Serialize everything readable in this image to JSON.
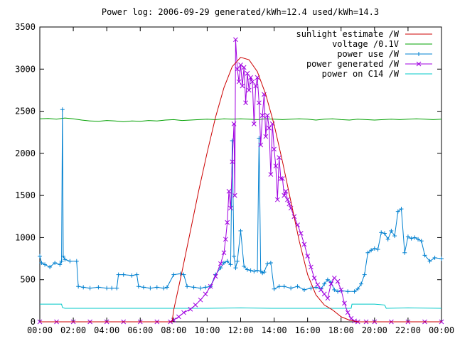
{
  "chart_data": {
    "type": "line",
    "title": "Power log: 2006-09-29 generated/kWh=12.4 used/kWh=14.3",
    "xlabel": "",
    "ylabel": "",
    "x_unit": "hour of day",
    "xlim": [
      0,
      24
    ],
    "ylim": [
      0,
      3500
    ],
    "grid": false,
    "legend_position": "top-right",
    "x_ticks": [
      {
        "value": 0,
        "label": "00:00"
      },
      {
        "value": 2,
        "label": "02:00"
      },
      {
        "value": 4,
        "label": "04:00"
      },
      {
        "value": 6,
        "label": "06:00"
      },
      {
        "value": 8,
        "label": "08:00"
      },
      {
        "value": 10,
        "label": "10:00"
      },
      {
        "value": 12,
        "label": "12:00"
      },
      {
        "value": 14,
        "label": "14:00"
      },
      {
        "value": 16,
        "label": "16:00"
      },
      {
        "value": 18,
        "label": "18:00"
      },
      {
        "value": 20,
        "label": "20:00"
      },
      {
        "value": 22,
        "label": "22:00"
      },
      {
        "value": 24,
        "label": "00:00"
      }
    ],
    "y_ticks": [
      {
        "value": 0,
        "label": "0"
      },
      {
        "value": 500,
        "label": "500"
      },
      {
        "value": 1000,
        "label": "1000"
      },
      {
        "value": 1500,
        "label": "1500"
      },
      {
        "value": 2000,
        "label": "2000"
      },
      {
        "value": 2500,
        "label": "2500"
      },
      {
        "value": 3000,
        "label": "3000"
      },
      {
        "value": 3500,
        "label": "3500"
      }
    ],
    "series": [
      {
        "name": "sunlight estimate /W",
        "color": "#cc0000",
        "marker": "none",
        "x": [
          0,
          7.9,
          8.0,
          8.5,
          9.0,
          9.5,
          10.0,
          10.5,
          11.0,
          11.5,
          12.0,
          12.5,
          13.0,
          13.5,
          14.0,
          14.5,
          15.0,
          15.5,
          16.0,
          16.5,
          17.0,
          17.5,
          18.0,
          18.5,
          19.0,
          24
        ],
        "y": [
          0,
          0,
          140,
          600,
          1080,
          1560,
          2010,
          2430,
          2780,
          3030,
          3140,
          3110,
          2970,
          2700,
          2340,
          1900,
          1430,
          960,
          560,
          320,
          200,
          140,
          60,
          20,
          0,
          0
        ]
      },
      {
        "name": "voltage /0.1V",
        "color": "#00a000",
        "marker": "none",
        "x": [
          0,
          0.5,
          1,
          1.5,
          2,
          2.5,
          3,
          3.5,
          4,
          4.5,
          5,
          5.5,
          6,
          6.5,
          7,
          7.5,
          8,
          8.5,
          9,
          9.5,
          10,
          10.5,
          11,
          11.5,
          12,
          12.5,
          13,
          13.5,
          14,
          14.5,
          15,
          15.5,
          16,
          16.5,
          17,
          17.5,
          18,
          18.5,
          19,
          19.5,
          20,
          20.5,
          21,
          21.5,
          22,
          22.5,
          23,
          23.5,
          24
        ],
        "y": [
          2410,
          2415,
          2405,
          2420,
          2410,
          2395,
          2385,
          2380,
          2390,
          2385,
          2375,
          2385,
          2380,
          2390,
          2385,
          2395,
          2400,
          2390,
          2395,
          2400,
          2405,
          2400,
          2410,
          2405,
          2410,
          2405,
          2400,
          2410,
          2405,
          2400,
          2405,
          2410,
          2405,
          2395,
          2405,
          2410,
          2400,
          2395,
          2405,
          2400,
          2395,
          2400,
          2405,
          2400,
          2405,
          2410,
          2405,
          2400,
          2405
        ]
      },
      {
        "name": "power use /W",
        "color": "#0080d0",
        "marker": "plus",
        "x": [
          0,
          0.1,
          0.3,
          0.6,
          0.9,
          1.2,
          1.3,
          1.35,
          1.4,
          1.5,
          1.8,
          2.2,
          2.3,
          2.6,
          3.0,
          3.5,
          4.0,
          4.3,
          4.6,
          4.7,
          5.0,
          5.5,
          5.8,
          5.9,
          6.2,
          6.6,
          7.0,
          7.4,
          7.6,
          8.0,
          8.4,
          8.6,
          8.8,
          9.2,
          9.6,
          9.9,
          10.2,
          10.5,
          10.8,
          11.0,
          11.2,
          11.4,
          11.5,
          11.6,
          11.7,
          11.8,
          12.0,
          12.2,
          12.4,
          12.6,
          12.8,
          13.0,
          13.1,
          13.2,
          13.3,
          13.4,
          13.6,
          13.8,
          14.0,
          14.3,
          14.6,
          15.0,
          15.4,
          15.8,
          16.2,
          16.5,
          16.8,
          17.0,
          17.2,
          17.4,
          17.6,
          17.8,
          18.0,
          18.4,
          18.8,
          19.0,
          19.2,
          19.4,
          19.6,
          19.8,
          20.0,
          20.2,
          20.4,
          20.6,
          20.8,
          21.0,
          21.2,
          21.4,
          21.6,
          21.8,
          22.0,
          22.2,
          22.4,
          22.6,
          22.8,
          23.0,
          23.3,
          23.6,
          24.0
        ],
        "y": [
          780,
          700,
          680,
          650,
          700,
          680,
          720,
          2520,
          780,
          740,
          720,
          720,
          420,
          410,
          400,
          410,
          400,
          400,
          400,
          560,
          560,
          550,
          560,
          420,
          410,
          400,
          410,
          400,
          410,
          560,
          570,
          560,
          420,
          410,
          400,
          410,
          420,
          560,
          640,
          700,
          720,
          680,
          2150,
          780,
          640,
          720,
          1080,
          660,
          620,
          610,
          600,
          610,
          2180,
          600,
          580,
          590,
          690,
          700,
          390,
          420,
          420,
          400,
          420,
          380,
          400,
          410,
          390,
          450,
          500,
          470,
          380,
          360,
          370,
          360,
          360,
          390,
          450,
          560,
          820,
          850,
          870,
          860,
          1060,
          1050,
          980,
          1080,
          1020,
          1310,
          1340,
          820,
          1010,
          990,
          1000,
          980,
          960,
          790,
          720,
          760,
          750
        ]
      },
      {
        "name": "power generated /W",
        "color": "#a000e0",
        "marker": "cross",
        "x": [
          0,
          1,
          2,
          3,
          4,
          5,
          6,
          7,
          7.8,
          8.0,
          8.3,
          8.6,
          9.0,
          9.3,
          9.6,
          9.9,
          10.2,
          10.5,
          10.8,
          11.0,
          11.1,
          11.2,
          11.3,
          11.4,
          11.5,
          11.6,
          11.65,
          11.7,
          11.8,
          11.9,
          12.0,
          12.1,
          12.2,
          12.3,
          12.4,
          12.5,
          12.6,
          12.7,
          12.8,
          12.9,
          13.0,
          13.1,
          13.2,
          13.3,
          13.4,
          13.5,
          13.6,
          13.7,
          13.8,
          13.9,
          14.0,
          14.1,
          14.2,
          14.3,
          14.4,
          14.5,
          14.6,
          14.7,
          14.8,
          14.9,
          15.0,
          15.2,
          15.4,
          15.6,
          15.8,
          16.0,
          16.2,
          16.4,
          16.6,
          16.8,
          17.0,
          17.2,
          17.4,
          17.6,
          17.8,
          18.0,
          18.2,
          18.4,
          18.6,
          18.8,
          19.0,
          19.5,
          20,
          21,
          22,
          23,
          24
        ],
        "y": [
          0,
          0,
          0,
          0,
          0,
          0,
          0,
          0,
          0,
          20,
          60,
          110,
          150,
          200,
          260,
          330,
          420,
          540,
          690,
          820,
          980,
          1180,
          1550,
          1350,
          1900,
          2350,
          1500,
          3350,
          3000,
          2850,
          3050,
          2800,
          3020,
          2600,
          2950,
          2750,
          2900,
          2850,
          2350,
          2800,
          2900,
          2600,
          2100,
          2450,
          2700,
          2200,
          2450,
          2300,
          1750,
          2350,
          2050,
          1850,
          1450,
          1950,
          1700,
          1700,
          1500,
          1550,
          1450,
          1400,
          1350,
          1250,
          1150,
          1050,
          920,
          780,
          650,
          520,
          440,
          380,
          330,
          280,
          450,
          520,
          480,
          380,
          220,
          110,
          40,
          10,
          0,
          0,
          0,
          0,
          0,
          0,
          0
        ]
      },
      {
        "name": "power on C14 /W",
        "color": "#00c8c8",
        "marker": "none",
        "x": [
          0,
          1.3,
          1.35,
          1.5,
          6,
          8,
          10,
          12,
          14,
          16,
          18,
          18.6,
          18.65,
          20,
          20.6,
          20.7,
          22,
          24
        ],
        "y": [
          210,
          210,
          170,
          160,
          160,
          160,
          160,
          165,
          160,
          160,
          160,
          160,
          210,
          210,
          200,
          160,
          165,
          160
        ]
      }
    ]
  }
}
